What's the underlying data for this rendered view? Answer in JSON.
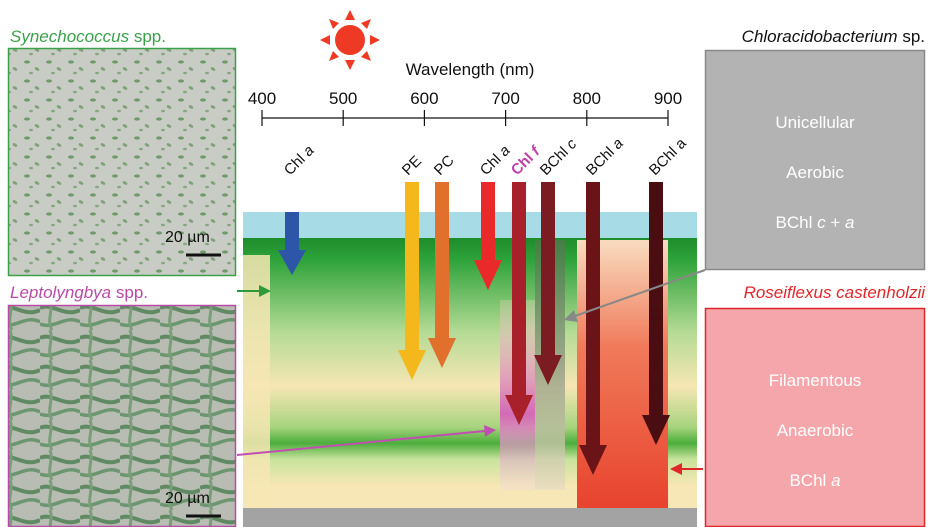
{
  "figure": {
    "synechococcus": {
      "genus": "Synechococcus",
      "suffix": "spp.",
      "scale": "20 µm"
    },
    "leptolyngbya": {
      "genus": "Leptolyngbya",
      "suffix": "spp.",
      "scale": "20 µm"
    },
    "axis": {
      "label": "Wavelength (nm)",
      "ticks": [
        400,
        500,
        600,
        700,
        800,
        900
      ]
    },
    "pigments": [
      {
        "name": "Chl",
        "letter": "a"
      },
      {
        "name": "PE"
      },
      {
        "name": "PC"
      },
      {
        "name": "Chl",
        "letter": "a"
      },
      {
        "name": "Chl",
        "letter": "f"
      },
      {
        "name": "BChl",
        "letter": "c"
      },
      {
        "name": "BChl",
        "letter": "a"
      },
      {
        "name": "BChl",
        "letter": "a"
      }
    ],
    "chloracidobacterium": {
      "genus": "Chloracidobacterium",
      "suffix": "sp.",
      "lines": [
        "Unicellular",
        "Aerobic"
      ],
      "pigment": [
        "BChl",
        "c",
        "+",
        "a"
      ]
    },
    "roseiflexus": {
      "name": "Roseiflexus castenholzii",
      "lines": [
        "Filamentous",
        "Anaerobic"
      ],
      "pigment": [
        "BChl",
        "a"
      ]
    }
  }
}
